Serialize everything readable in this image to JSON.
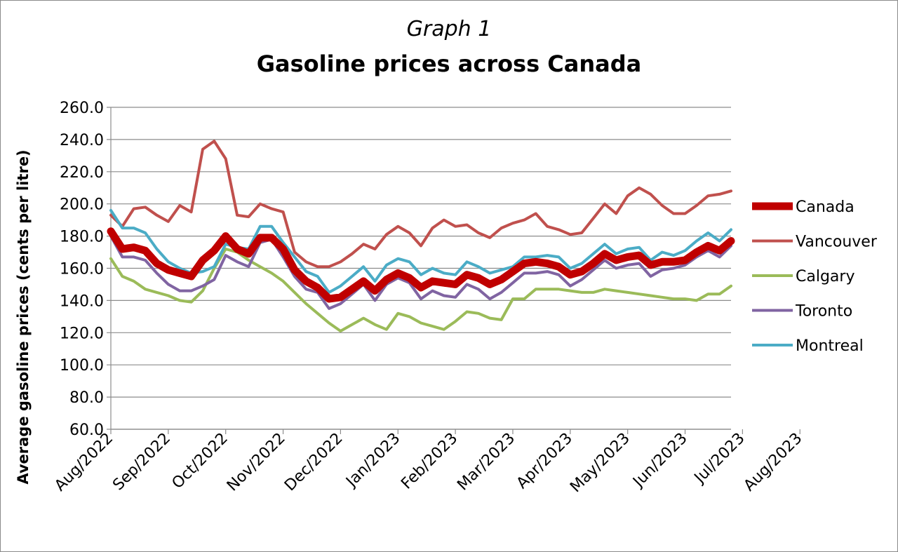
{
  "chart_data": {
    "type": "line",
    "title_sub": "Graph 1",
    "title": "Gasoline prices across Canada",
    "ylabel": "Average gasoline prices (cents per litre)",
    "xlabel": "",
    "ylim": [
      60,
      260
    ],
    "y_ticks": [
      "60.0",
      "80.0",
      "100.0",
      "120.0",
      "140.0",
      "160.0",
      "180.0",
      "200.0",
      "220.0",
      "240.0",
      "260.0"
    ],
    "x_tick_labels": [
      "Aug/2022",
      "Sep/2022",
      "Oct/2022",
      "Nov/2022",
      "Dec/2022",
      "Jan/2023",
      "Feb/2023",
      "Mar/2023",
      "Apr/2023",
      "May/2023",
      "Jun/2023",
      "Jul/2023",
      "Aug/2023"
    ],
    "x_tick_index": [
      0,
      5,
      10,
      15,
      20,
      25,
      30,
      35,
      40,
      45,
      50,
      55,
      60
    ],
    "grid": "horizontal",
    "legend_position": "right",
    "series": [
      {
        "name": "Canada",
        "color": "#C00000",
        "width": 11,
        "values": [
          183,
          172,
          173,
          171,
          163,
          159,
          157,
          155,
          165,
          171,
          180,
          172,
          169,
          179,
          179,
          172,
          159,
          152,
          148,
          141,
          142,
          147,
          152,
          146,
          153,
          157,
          154,
          148,
          152,
          151,
          150,
          156,
          154,
          150,
          153,
          158,
          163,
          164,
          163,
          161,
          156,
          158,
          163,
          169,
          165,
          167,
          168,
          162,
          164,
          164,
          165,
          170,
          174,
          171,
          177
        ]
      },
      {
        "name": "Vancouver",
        "color": "#C0504D",
        "width": 4,
        "values": [
          193,
          186,
          197,
          198,
          193,
          189,
          199,
          195,
          234,
          239,
          228,
          193,
          192,
          200,
          197,
          195,
          170,
          164,
          161,
          161,
          164,
          169,
          175,
          172,
          181,
          186,
          182,
          174,
          185,
          190,
          186,
          187,
          182,
          179,
          185,
          188,
          190,
          194,
          186,
          184,
          181,
          182,
          191,
          200,
          194,
          205,
          210,
          206,
          199,
          194,
          194,
          199,
          205,
          206,
          208
        ]
      },
      {
        "name": "Calgary",
        "color": "#9BBB59",
        "width": 4,
        "values": [
          166,
          155,
          152,
          147,
          145,
          143,
          140,
          139,
          146,
          160,
          172,
          170,
          165,
          161,
          157,
          152,
          145,
          138,
          132,
          126,
          121,
          125,
          129,
          125,
          122,
          132,
          130,
          126,
          124,
          122,
          127,
          133,
          132,
          129,
          128,
          141,
          141,
          147,
          147,
          147,
          146,
          145,
          145,
          147,
          146,
          145,
          144,
          143,
          142,
          141,
          141,
          140,
          144,
          144,
          149
        ]
      },
      {
        "name": "Toronto",
        "color": "#8064A2",
        "width": 4,
        "values": [
          180,
          167,
          167,
          165,
          157,
          150,
          146,
          146,
          149,
          153,
          168,
          164,
          161,
          176,
          178,
          167,
          155,
          147,
          145,
          135,
          138,
          144,
          150,
          140,
          150,
          154,
          151,
          141,
          146,
          143,
          142,
          150,
          147,
          141,
          145,
          151,
          157,
          157,
          158,
          156,
          149,
          153,
          159,
          165,
          160,
          162,
          163,
          155,
          159,
          160,
          162,
          167,
          171,
          167,
          174
        ]
      },
      {
        "name": "Montreal",
        "color": "#4BACC6",
        "width": 4,
        "values": [
          196,
          185,
          185,
          182,
          172,
          164,
          160,
          157,
          158,
          161,
          175,
          173,
          172,
          186,
          186,
          176,
          167,
          158,
          155,
          145,
          149,
          155,
          161,
          152,
          162,
          166,
          164,
          156,
          160,
          157,
          156,
          164,
          161,
          157,
          159,
          161,
          167,
          167,
          168,
          167,
          160,
          163,
          169,
          175,
          169,
          172,
          173,
          165,
          170,
          168,
          171,
          177,
          182,
          177,
          184
        ]
      }
    ]
  }
}
